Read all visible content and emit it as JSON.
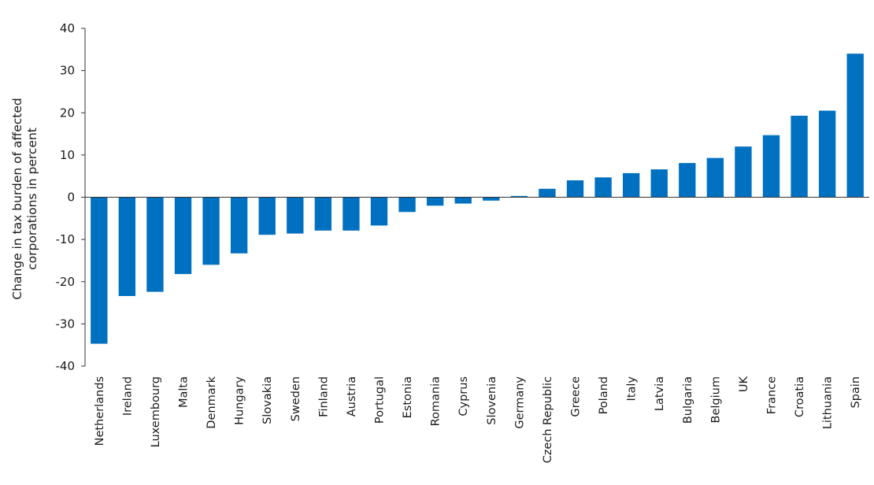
{
  "chart_data": {
    "type": "bar",
    "title": "",
    "xlabel": "",
    "ylabel_lines": [
      "Change in tax burden of affected",
      "corporations in percent"
    ],
    "ylim": [
      -40,
      40
    ],
    "yticks": [
      40,
      30,
      20,
      10,
      0,
      -10,
      -20,
      -30,
      -40
    ],
    "bar_color": "#0070C0",
    "grid": false,
    "categories": [
      "Netherlands",
      "Ireland",
      "Luxembourg",
      "Malta",
      "Denmark",
      "Hungary",
      "Slovakia",
      "Sweden",
      "Finland",
      "Austria",
      "Portugal",
      "Estonia",
      "Romania",
      "Cyprus",
      "Slovenia",
      "Germany",
      "Czech Republic",
      "Greece",
      "Poland",
      "Italy",
      "Latvia",
      "Bulgaria",
      "Belgium",
      "UK",
      "France",
      "Croatia",
      "Lithuania",
      "Spain"
    ],
    "values": [
      -34.7,
      -23.4,
      -22.4,
      -18.2,
      -16.0,
      -13.3,
      -8.9,
      -8.6,
      -7.9,
      -7.9,
      -6.7,
      -3.5,
      -2.0,
      -1.5,
      -0.8,
      0.3,
      2.0,
      4.0,
      4.7,
      5.7,
      6.6,
      8.1,
      9.3,
      12.0,
      14.7,
      19.3,
      20.5,
      34.0
    ]
  }
}
